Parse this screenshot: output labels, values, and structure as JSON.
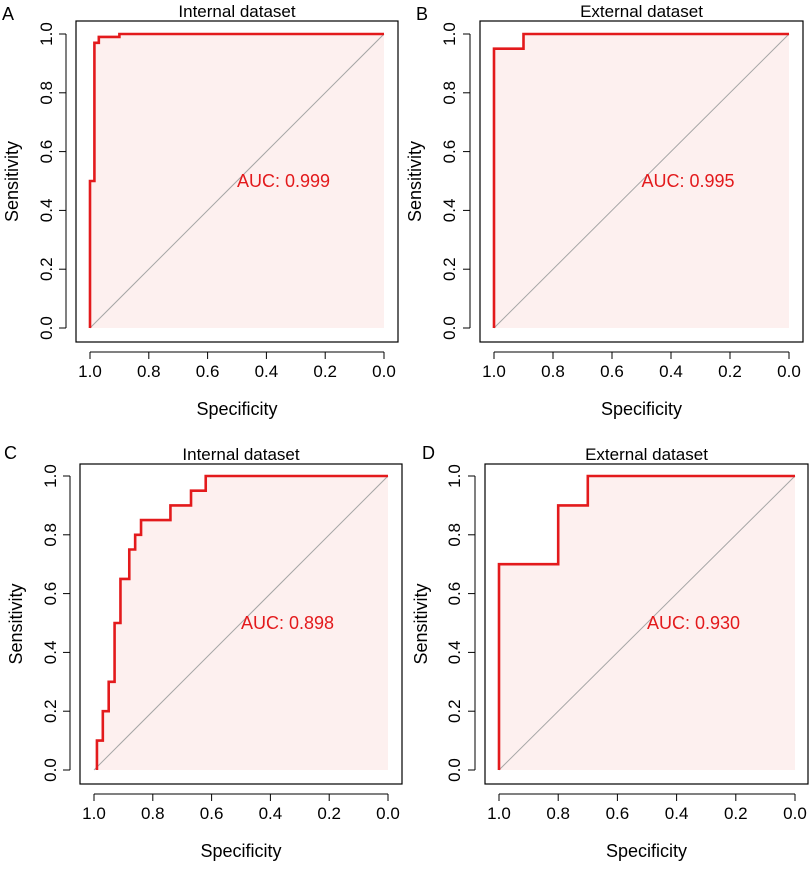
{
  "colors": {
    "curve": "#e31a1c",
    "fill": "#fdf0ef",
    "diagonal": "#a6a6a6",
    "axis": "#000000",
    "auc_text": "#e31a1c"
  },
  "chart_data": [
    {
      "type": "line",
      "panel_label": "A",
      "title": "Internal dataset",
      "xlabel": "Specificity",
      "ylabel": "Sensitivity",
      "xlim": [
        1.0,
        0.0
      ],
      "ylim": [
        0.0,
        1.0
      ],
      "x_ticks": [
        "1.0",
        "0.8",
        "0.6",
        "0.4",
        "0.2",
        "0.0"
      ],
      "y_ticks": [
        "0.0",
        "0.2",
        "0.4",
        "0.6",
        "0.8",
        "1.0"
      ],
      "auc_label": "AUC: 0.999",
      "specificity": [
        1.0,
        1.0,
        0.985,
        0.985,
        0.985,
        0.985,
        0.985,
        0.985,
        0.985,
        0.97,
        0.97,
        0.97,
        0.97,
        0.97,
        0.97,
        0.95,
        0.95,
        0.95,
        0.94,
        0.94,
        0.94,
        0.94,
        0.94,
        0.94,
        0.94,
        0.94,
        0.92,
        0.92,
        0.9,
        0.9,
        0.0
      ],
      "sensitivity": [
        0.0,
        0.5,
        0.5,
        0.6,
        0.7,
        0.8,
        0.9,
        0.95,
        0.97,
        0.97,
        0.975,
        0.98,
        0.985,
        0.99,
        0.99,
        0.99,
        0.99,
        0.99,
        0.99,
        0.99,
        0.99,
        0.99,
        0.99,
        0.99,
        0.99,
        0.99,
        0.99,
        0.99,
        0.99,
        1.0,
        1.0
      ]
    },
    {
      "type": "line",
      "panel_label": "B",
      "title": "External dataset",
      "xlabel": "Specificity",
      "ylabel": "Sensitivity",
      "xlim": [
        1.0,
        0.0
      ],
      "ylim": [
        0.0,
        1.0
      ],
      "x_ticks": [
        "1.0",
        "0.8",
        "0.6",
        "0.4",
        "0.2",
        "0.0"
      ],
      "y_ticks": [
        "0.0",
        "0.2",
        "0.4",
        "0.6",
        "0.8",
        "1.0"
      ],
      "auc_label": "AUC: 0.995",
      "specificity": [
        1.0,
        1.0,
        0.9,
        0.9,
        0.0
      ],
      "sensitivity": [
        0.0,
        0.95,
        0.95,
        1.0,
        1.0
      ]
    },
    {
      "type": "line",
      "panel_label": "C",
      "title": "Internal dataset",
      "xlabel": "Specificity",
      "ylabel": "Sensitivity",
      "xlim": [
        1.0,
        0.0
      ],
      "ylim": [
        0.0,
        1.0
      ],
      "x_ticks": [
        "1.0",
        "0.8",
        "0.6",
        "0.4",
        "0.2",
        "0.0"
      ],
      "y_ticks": [
        "0.0",
        "0.2",
        "0.4",
        "0.6",
        "0.8",
        "1.0"
      ],
      "auc_label": "AUC: 0.898",
      "specificity": [
        0.99,
        0.99,
        0.97,
        0.97,
        0.95,
        0.95,
        0.93,
        0.93,
        0.91,
        0.91,
        0.88,
        0.88,
        0.86,
        0.86,
        0.84,
        0.84,
        0.74,
        0.74,
        0.67,
        0.67,
        0.62,
        0.62,
        0.0
      ],
      "sensitivity": [
        0.0,
        0.1,
        0.1,
        0.2,
        0.2,
        0.3,
        0.3,
        0.5,
        0.5,
        0.65,
        0.65,
        0.75,
        0.75,
        0.8,
        0.8,
        0.85,
        0.85,
        0.9,
        0.9,
        0.95,
        0.95,
        1.0,
        1.0
      ]
    },
    {
      "type": "line",
      "panel_label": "D",
      "title": "External dataset",
      "xlabel": "Specificity",
      "ylabel": "Sensitivity",
      "xlim": [
        1.0,
        0.0
      ],
      "ylim": [
        0.0,
        1.0
      ],
      "x_ticks": [
        "1.0",
        "0.8",
        "0.6",
        "0.4",
        "0.2",
        "0.0"
      ],
      "y_ticks": [
        "0.0",
        "0.2",
        "0.4",
        "0.6",
        "0.8",
        "1.0"
      ],
      "auc_label": "AUC: 0.930",
      "specificity": [
        1.0,
        1.0,
        0.8,
        0.8,
        0.7,
        0.7,
        0.0
      ],
      "sensitivity": [
        0.0,
        0.7,
        0.7,
        0.9,
        0.9,
        1.0,
        1.0
      ]
    }
  ]
}
